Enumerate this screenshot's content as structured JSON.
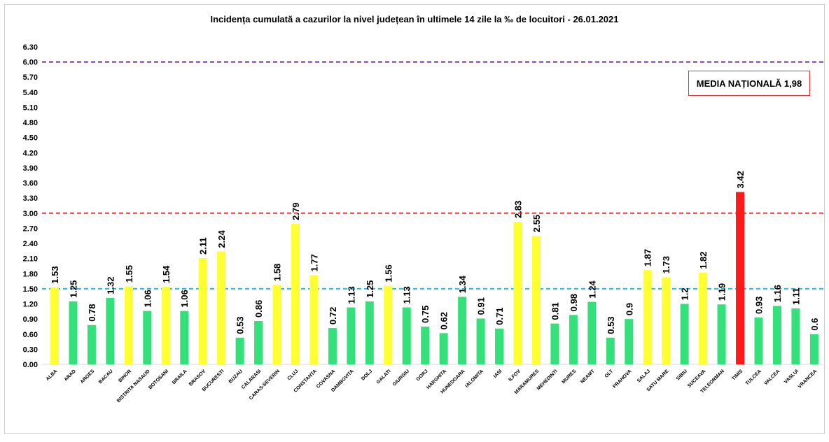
{
  "chart_data": {
    "type": "bar",
    "title": "Incidența cumulată a cazurilor la nivel județean în ultimele 14 zile la ‰ de locuitori - 26.01.2021",
    "annotation": "MEDIA NAȚIONALĂ  1,98",
    "categories": [
      "ALBA",
      "ARAD",
      "ARGES",
      "BACAU",
      "BIHOR",
      "BISTRITA NASAUD",
      "BOTOSANI",
      "BRAILA",
      "BRASOV",
      "BUCURESTI",
      "BUZAU",
      "CALARASI",
      "CARAS-SEVERIN",
      "CLUJ",
      "CONSTANTA",
      "COVASNA",
      "DAMBOVITA",
      "DOLJ",
      "GALATI",
      "GIURGIU",
      "GORJ",
      "HARGHITA",
      "HUNEDOARA",
      "IALOMITA",
      "IASI",
      "ILFOV",
      "MARAMURES",
      "MEHEDINTI",
      "MURES",
      "NEAMT",
      "OLT",
      "PRAHOVA",
      "SALAJ",
      "SATU MARE",
      "SIBIU",
      "SUCEAVA",
      "TELEORMAN",
      "TIMIS",
      "TULCEA",
      "VALCEA",
      "VASLUI",
      "VRANCEA"
    ],
    "values": [
      1.53,
      1.25,
      0.78,
      1.32,
      1.55,
      1.06,
      1.54,
      1.06,
      2.11,
      2.24,
      0.53,
      0.86,
      1.58,
      2.79,
      1.77,
      0.72,
      1.13,
      1.25,
      1.56,
      1.13,
      0.75,
      0.62,
      1.34,
      0.91,
      0.71,
      2.83,
      2.55,
      0.81,
      0.98,
      1.24,
      0.53,
      0.9,
      1.87,
      1.73,
      1.2,
      1.82,
      1.19,
      3.42,
      0.93,
      1.16,
      1.11,
      0.6
    ],
    "value_labels": [
      "1.53",
      "1.25",
      "0.78",
      "1.32",
      "1.55",
      "1.06",
      "1.54",
      "1.06",
      "2.11",
      "2.24",
      "0.53",
      "0.86",
      "1.58",
      "2.79",
      "1.77",
      "0.72",
      "1.13",
      "1.25",
      "1.56",
      "1.13",
      "0.75",
      "0.62",
      "1.34",
      "0.91",
      "0.71",
      "2.83",
      "2.55",
      "0.81",
      "0.98",
      "1.24",
      "0.53",
      "0.9",
      "1.87",
      "1.73",
      "1.2",
      "1.82",
      "1.19",
      "3.42",
      "0.93",
      "1.16",
      "1.11",
      "0.6"
    ],
    "ylim": [
      0,
      6.3
    ],
    "yticks": [
      "0.00",
      "0.30",
      "0.60",
      "0.90",
      "1.20",
      "1.50",
      "1.80",
      "2.10",
      "2.40",
      "2.70",
      "3.00",
      "3.30",
      "3.60",
      "3.90",
      "4.20",
      "4.50",
      "4.80",
      "5.10",
      "5.40",
      "5.70",
      "6.00",
      "6.30"
    ],
    "reference_lines": [
      {
        "value": 6.0,
        "color": "#7030a0"
      },
      {
        "value": 3.0,
        "color": "#ff3333"
      },
      {
        "value": 1.5,
        "color": "#22b8e8"
      }
    ],
    "colors": {
      "low": "#33e07a",
      "medium": "#ffff33",
      "high": "#ff1a1a"
    },
    "grid": false,
    "xlabel": "",
    "ylabel": ""
  }
}
